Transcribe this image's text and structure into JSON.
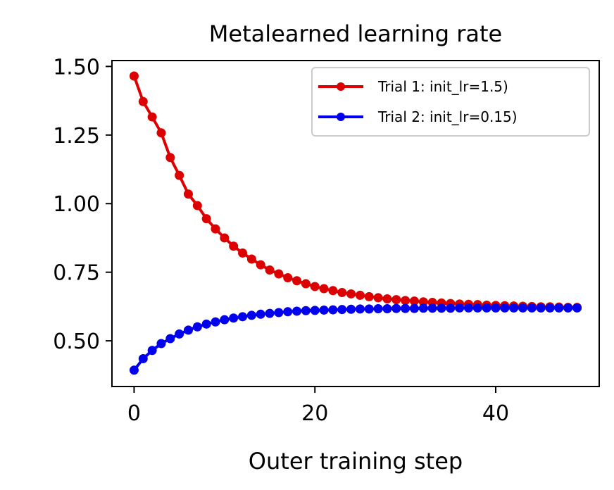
{
  "chart_data": {
    "type": "line",
    "title": "Metalearned learning rate",
    "xlabel": "Outer training step",
    "ylabel": "",
    "xlim": [
      -2.45,
      51.45
    ],
    "ylim": [
      0.3335,
      1.5215
    ],
    "xticks": [
      0,
      20,
      40
    ],
    "xtick_labels": [
      "0",
      "20",
      "40"
    ],
    "yticks": [
      0.5,
      0.75,
      1.0,
      1.25,
      1.5
    ],
    "ytick_labels": [
      "0.50",
      "0.75",
      "1.00",
      "1.25",
      "1.50"
    ],
    "grid": false,
    "legend_position": "top-right",
    "x": [
      0,
      1,
      2,
      3,
      4,
      5,
      6,
      7,
      8,
      9,
      10,
      11,
      12,
      13,
      14,
      15,
      16,
      17,
      18,
      19,
      20,
      21,
      22,
      23,
      24,
      25,
      26,
      27,
      28,
      29,
      30,
      31,
      32,
      33,
      34,
      35,
      36,
      37,
      38,
      39,
      40,
      41,
      42,
      43,
      44,
      45,
      46,
      47,
      48,
      49
    ],
    "series": [
      {
        "name": "Trial 1: init_lr=1.5)",
        "color": "#dd0000",
        "values": [
          1.465,
          1.372,
          1.316,
          1.258,
          1.168,
          1.103,
          1.035,
          0.993,
          0.945,
          0.908,
          0.875,
          0.845,
          0.82,
          0.798,
          0.777,
          0.758,
          0.744,
          0.73,
          0.719,
          0.708,
          0.698,
          0.69,
          0.683,
          0.676,
          0.671,
          0.666,
          0.661,
          0.657,
          0.653,
          0.65,
          0.647,
          0.645,
          0.642,
          0.64,
          0.638,
          0.636,
          0.634,
          0.633,
          0.632,
          0.63,
          0.629,
          0.628,
          0.627,
          0.626,
          0.625,
          0.624,
          0.624,
          0.623,
          0.622,
          0.622
        ]
      },
      {
        "name": "Trial 2: init_lr=0.15)",
        "color": "#0000ee",
        "values": [
          0.393,
          0.435,
          0.465,
          0.49,
          0.508,
          0.525,
          0.539,
          0.551,
          0.561,
          0.569,
          0.577,
          0.583,
          0.588,
          0.593,
          0.597,
          0.6,
          0.603,
          0.606,
          0.608,
          0.61,
          0.611,
          0.612,
          0.613,
          0.614,
          0.615,
          0.616,
          0.616,
          0.617,
          0.617,
          0.618,
          0.618,
          0.618,
          0.619,
          0.619,
          0.619,
          0.619,
          0.62,
          0.62,
          0.62,
          0.62,
          0.62,
          0.62,
          0.62,
          0.62,
          0.62,
          0.62,
          0.62,
          0.62,
          0.62,
          0.62
        ]
      }
    ]
  }
}
